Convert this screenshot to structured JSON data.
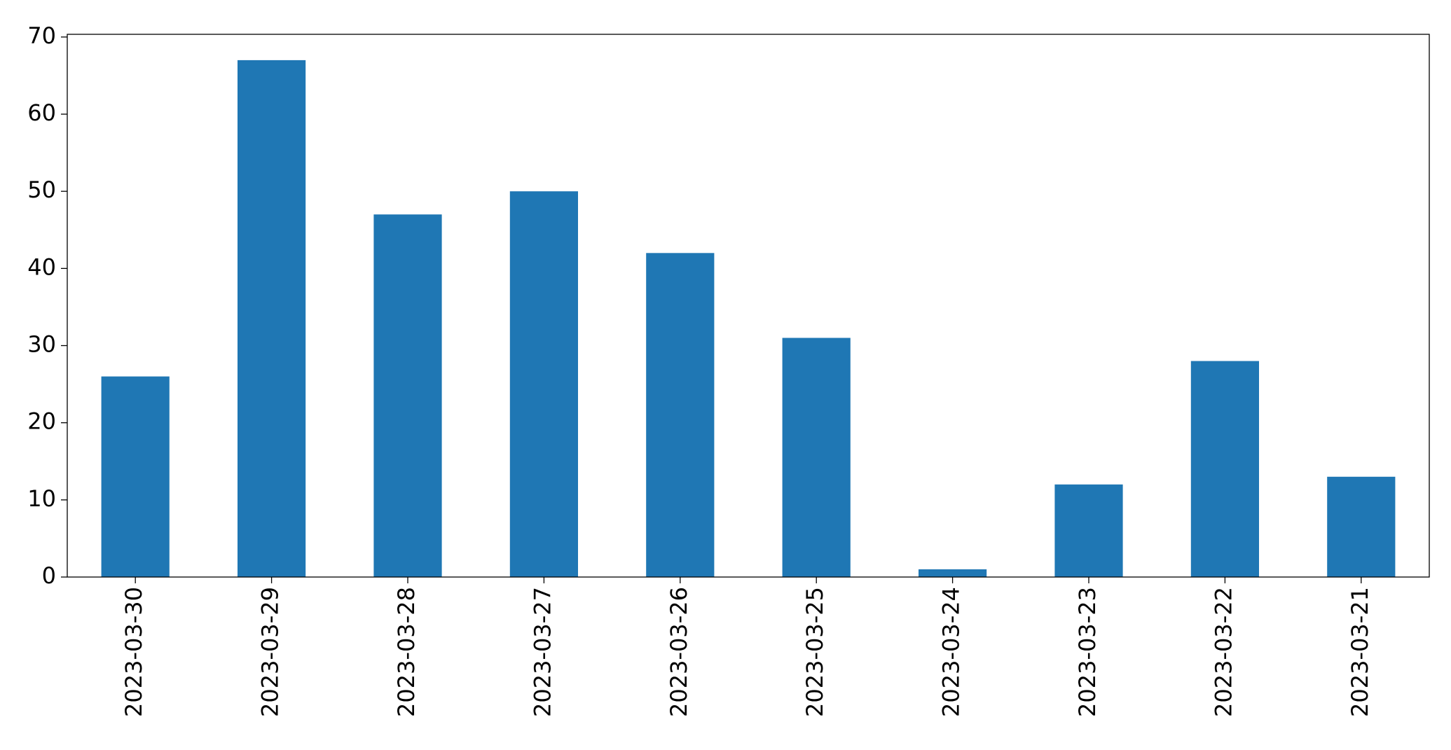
{
  "chart_data": {
    "type": "bar",
    "categories": [
      "2023-03-30",
      "2023-03-29",
      "2023-03-28",
      "2023-03-27",
      "2023-03-26",
      "2023-03-25",
      "2023-03-24",
      "2023-03-23",
      "2023-03-22",
      "2023-03-21"
    ],
    "values": [
      26,
      67,
      47,
      50,
      42,
      31,
      1,
      12,
      28,
      13
    ],
    "color": "#1f77b4",
    "ylim": [
      0,
      70.35
    ],
    "yticks": [
      0,
      10,
      20,
      30,
      40,
      50,
      60,
      70
    ],
    "grid": false
  }
}
